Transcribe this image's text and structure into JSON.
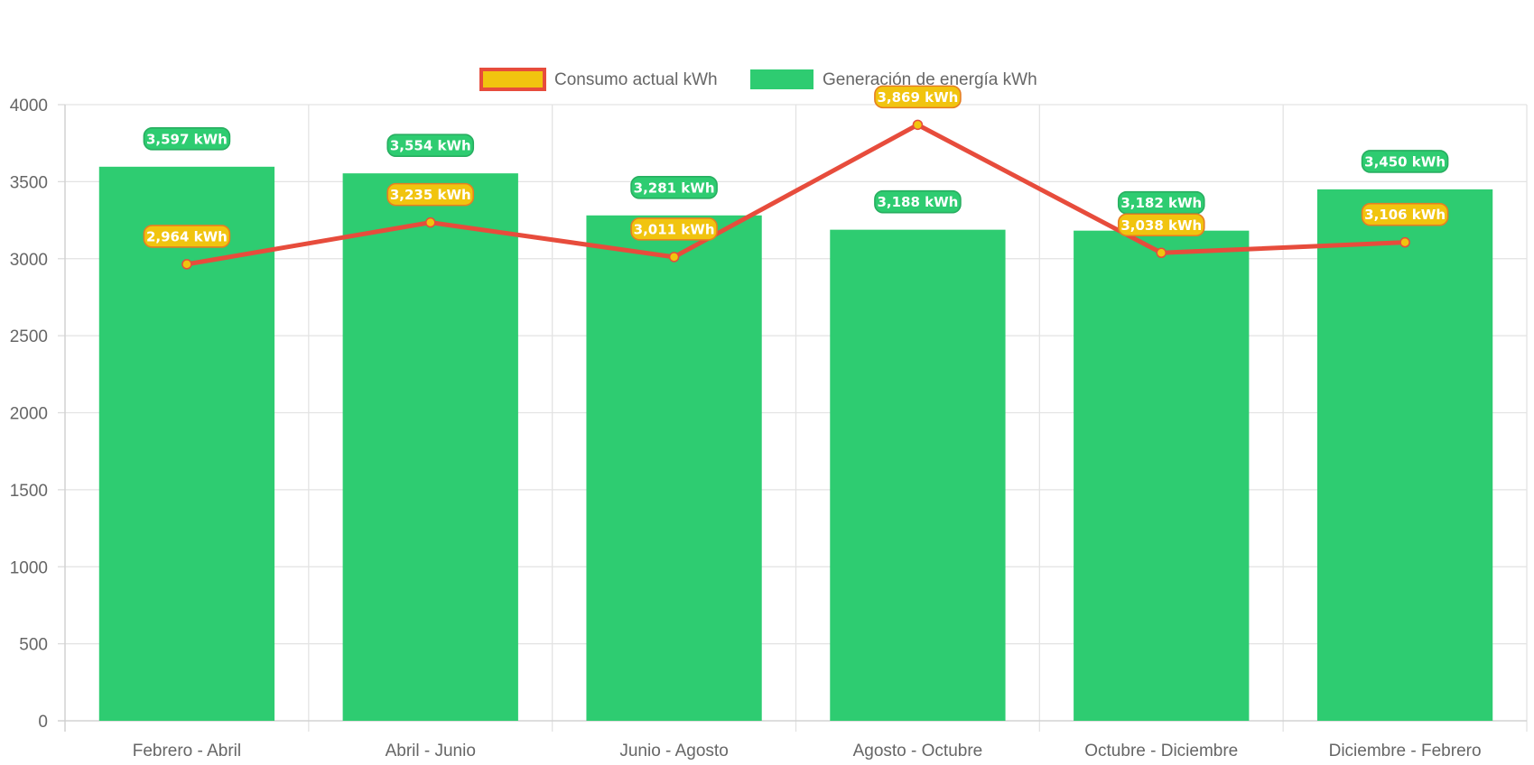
{
  "chart_data": {
    "type": "bar",
    "categories": [
      "Febrero - Abril",
      "Abril - Junio",
      "Junio - Agosto",
      "Agosto - Octubre",
      "Octubre - Diciembre",
      "Diciembre - Febrero"
    ],
    "series": [
      {
        "name": "Consumo actual kWh",
        "type": "line",
        "color": "#e74c3c",
        "point_color": "#f1c40f",
        "values": [
          2964,
          3235,
          3011,
          3869,
          3038,
          3106
        ],
        "labels": [
          "2,964 kWh",
          "3,235 kWh",
          "3,011 kWh",
          "3,869 kWh",
          "3,038 kWh",
          "3,106 kWh"
        ]
      },
      {
        "name": "Generación de energía kWh",
        "type": "bar",
        "color": "#2ecc71",
        "values": [
          3597,
          3554,
          3281,
          3188,
          3182,
          3450
        ],
        "labels": [
          "3,597 kWh",
          "3,554 kWh",
          "3,281 kWh",
          "3,188 kWh",
          "3,182 kWh",
          "3,450 kWh"
        ]
      }
    ],
    "ylim": [
      0,
      4000
    ],
    "yticks": [
      "0",
      "500",
      "1000",
      "1500",
      "2000",
      "2500",
      "3000",
      "3500",
      "4000"
    ],
    "grid": true,
    "legend_position": "top"
  }
}
